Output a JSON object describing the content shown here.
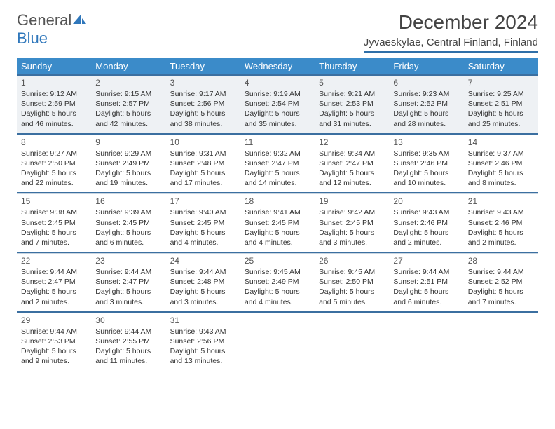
{
  "brand": {
    "name1": "General",
    "name2": "Blue"
  },
  "title": "December 2024",
  "location": "Jyvaeskylae, Central Finland, Finland",
  "styling": {
    "header_bg": "#3b8bc9",
    "header_text": "#ffffff",
    "rule_color": "#3b6fa0",
    "shade_bg": "#eef1f4",
    "cell_border": "#c9d6e2",
    "body_font": "Arial",
    "title_fontsize": 28,
    "location_fontsize": 15,
    "dayheader_fontsize": 13,
    "daynum_fontsize": 12,
    "dayline_fontsize": 10.5
  },
  "dayHeaders": [
    "Sunday",
    "Monday",
    "Tuesday",
    "Wednesday",
    "Thursday",
    "Friday",
    "Saturday"
  ],
  "weeks": [
    [
      {
        "n": "1",
        "sr": "9:12 AM",
        "ss": "2:59 PM",
        "dl": "5 hours and 46 minutes."
      },
      {
        "n": "2",
        "sr": "9:15 AM",
        "ss": "2:57 PM",
        "dl": "5 hours and 42 minutes."
      },
      {
        "n": "3",
        "sr": "9:17 AM",
        "ss": "2:56 PM",
        "dl": "5 hours and 38 minutes."
      },
      {
        "n": "4",
        "sr": "9:19 AM",
        "ss": "2:54 PM",
        "dl": "5 hours and 35 minutes."
      },
      {
        "n": "5",
        "sr": "9:21 AM",
        "ss": "2:53 PM",
        "dl": "5 hours and 31 minutes."
      },
      {
        "n": "6",
        "sr": "9:23 AM",
        "ss": "2:52 PM",
        "dl": "5 hours and 28 minutes."
      },
      {
        "n": "7",
        "sr": "9:25 AM",
        "ss": "2:51 PM",
        "dl": "5 hours and 25 minutes."
      }
    ],
    [
      {
        "n": "8",
        "sr": "9:27 AM",
        "ss": "2:50 PM",
        "dl": "5 hours and 22 minutes."
      },
      {
        "n": "9",
        "sr": "9:29 AM",
        "ss": "2:49 PM",
        "dl": "5 hours and 19 minutes."
      },
      {
        "n": "10",
        "sr": "9:31 AM",
        "ss": "2:48 PM",
        "dl": "5 hours and 17 minutes."
      },
      {
        "n": "11",
        "sr": "9:32 AM",
        "ss": "2:47 PM",
        "dl": "5 hours and 14 minutes."
      },
      {
        "n": "12",
        "sr": "9:34 AM",
        "ss": "2:47 PM",
        "dl": "5 hours and 12 minutes."
      },
      {
        "n": "13",
        "sr": "9:35 AM",
        "ss": "2:46 PM",
        "dl": "5 hours and 10 minutes."
      },
      {
        "n": "14",
        "sr": "9:37 AM",
        "ss": "2:46 PM",
        "dl": "5 hours and 8 minutes."
      }
    ],
    [
      {
        "n": "15",
        "sr": "9:38 AM",
        "ss": "2:45 PM",
        "dl": "5 hours and 7 minutes."
      },
      {
        "n": "16",
        "sr": "9:39 AM",
        "ss": "2:45 PM",
        "dl": "5 hours and 6 minutes."
      },
      {
        "n": "17",
        "sr": "9:40 AM",
        "ss": "2:45 PM",
        "dl": "5 hours and 4 minutes."
      },
      {
        "n": "18",
        "sr": "9:41 AM",
        "ss": "2:45 PM",
        "dl": "5 hours and 4 minutes."
      },
      {
        "n": "19",
        "sr": "9:42 AM",
        "ss": "2:45 PM",
        "dl": "5 hours and 3 minutes."
      },
      {
        "n": "20",
        "sr": "9:43 AM",
        "ss": "2:46 PM",
        "dl": "5 hours and 2 minutes."
      },
      {
        "n": "21",
        "sr": "9:43 AM",
        "ss": "2:46 PM",
        "dl": "5 hours and 2 minutes."
      }
    ],
    [
      {
        "n": "22",
        "sr": "9:44 AM",
        "ss": "2:47 PM",
        "dl": "5 hours and 2 minutes."
      },
      {
        "n": "23",
        "sr": "9:44 AM",
        "ss": "2:47 PM",
        "dl": "5 hours and 3 minutes."
      },
      {
        "n": "24",
        "sr": "9:44 AM",
        "ss": "2:48 PM",
        "dl": "5 hours and 3 minutes."
      },
      {
        "n": "25",
        "sr": "9:45 AM",
        "ss": "2:49 PM",
        "dl": "5 hours and 4 minutes."
      },
      {
        "n": "26",
        "sr": "9:45 AM",
        "ss": "2:50 PM",
        "dl": "5 hours and 5 minutes."
      },
      {
        "n": "27",
        "sr": "9:44 AM",
        "ss": "2:51 PM",
        "dl": "5 hours and 6 minutes."
      },
      {
        "n": "28",
        "sr": "9:44 AM",
        "ss": "2:52 PM",
        "dl": "5 hours and 7 minutes."
      }
    ],
    [
      {
        "n": "29",
        "sr": "9:44 AM",
        "ss": "2:53 PM",
        "dl": "5 hours and 9 minutes."
      },
      {
        "n": "30",
        "sr": "9:44 AM",
        "ss": "2:55 PM",
        "dl": "5 hours and 11 minutes."
      },
      {
        "n": "31",
        "sr": "9:43 AM",
        "ss": "2:56 PM",
        "dl": "5 hours and 13 minutes."
      },
      null,
      null,
      null,
      null
    ]
  ],
  "labels": {
    "sunrise": "Sunrise:",
    "sunset": "Sunset:",
    "daylight": "Daylight:"
  }
}
